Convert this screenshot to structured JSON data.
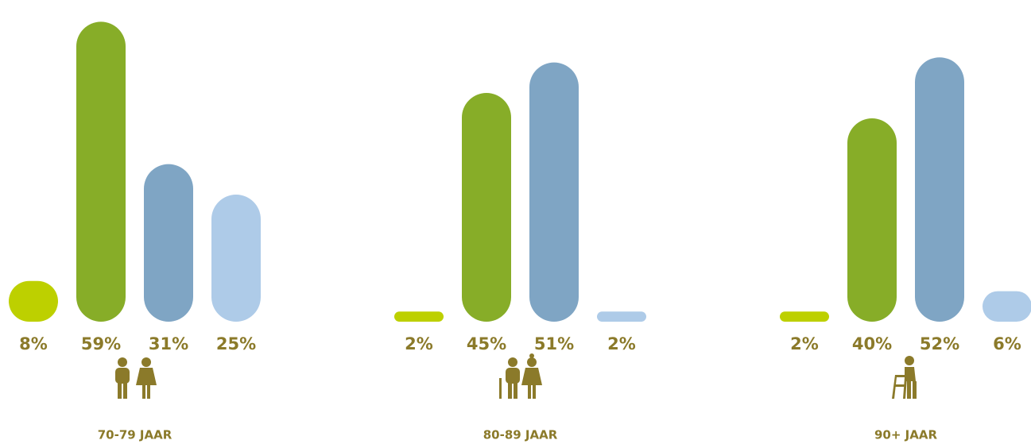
{
  "chart_data": {
    "type": "bar",
    "categories": [
      "70-79 JAAR",
      "80-89 JAAR",
      "90+ JAAR"
    ],
    "series": [
      {
        "color": "#bdd000",
        "values": [
          8,
          2,
          2
        ],
        "value_labels": [
          "8%",
          "2%",
          "2%"
        ]
      },
      {
        "color": "#87ad28",
        "values": [
          59,
          45,
          40
        ],
        "value_labels": [
          "59%",
          "45%",
          "40%"
        ]
      },
      {
        "color": "#7fa5c4",
        "values": [
          31,
          51,
          52
        ],
        "value_labels": [
          "31%",
          "51%",
          "52%"
        ]
      },
      {
        "color": "#aecbe8",
        "values": [
          25,
          2,
          6
        ],
        "value_labels": [
          "25%",
          "2%",
          "6%"
        ]
      }
    ]
  }
}
